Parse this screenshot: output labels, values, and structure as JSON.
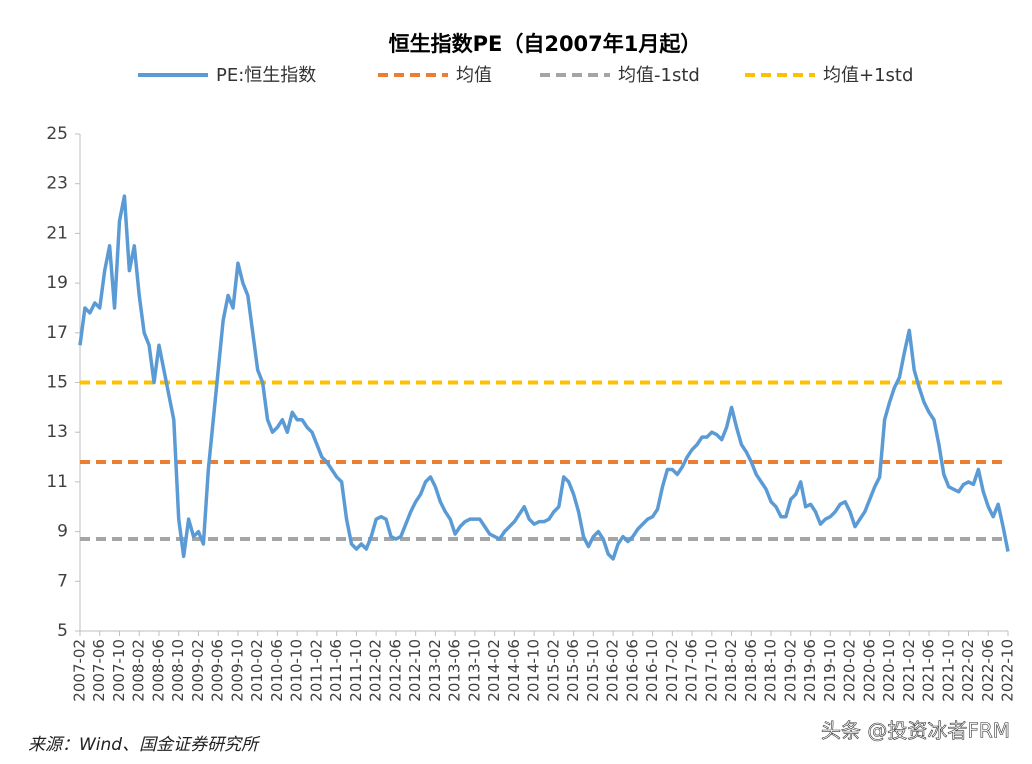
{
  "chart_data": {
    "type": "line",
    "title": "恒生指数PE（自2007年1月起）",
    "categories": [
      "2007-02",
      null,
      null,
      null,
      "2007-06",
      null,
      null,
      null,
      "2007-10",
      null,
      null,
      null,
      "2008-02",
      null,
      null,
      null,
      "2008-06",
      null,
      null,
      null,
      "2008-10",
      null,
      null,
      null,
      "2009-02",
      null,
      null,
      null,
      "2009-06",
      null,
      null,
      null,
      "2009-10",
      null,
      null,
      null,
      "2010-02",
      null,
      null,
      null,
      "2010-06",
      null,
      null,
      null,
      "2010-10",
      null,
      null,
      null,
      "2011-02",
      null,
      null,
      null,
      "2011-06",
      null,
      null,
      null,
      "2011-10",
      null,
      null,
      null,
      "2012-02",
      null,
      null,
      null,
      "2012-06",
      null,
      null,
      null,
      "2012-10",
      null,
      null,
      null,
      "2013-02",
      null,
      null,
      null,
      "2013-06",
      null,
      null,
      null,
      "2013-10",
      null,
      null,
      null,
      "2014-02",
      null,
      null,
      null,
      "2014-06",
      null,
      null,
      null,
      "2014-10",
      null,
      null,
      null,
      "2015-02",
      null,
      null,
      null,
      "2015-06",
      null,
      null,
      null,
      "2015-10",
      null,
      null,
      null,
      "2016-02",
      null,
      null,
      null,
      "2016-06",
      null,
      null,
      null,
      "2016-10",
      null,
      null,
      null,
      "2017-02",
      null,
      null,
      null,
      "2017-06",
      null,
      null,
      null,
      "2017-10",
      null,
      null,
      null,
      "2018-02",
      null,
      null,
      null,
      "2018-06",
      null,
      null,
      null,
      "2018-10",
      null,
      null,
      null,
      "2019-02",
      null,
      null,
      null,
      "2019-06",
      null,
      null,
      null,
      "2019-10",
      null,
      null,
      null,
      "2020-02",
      null,
      null,
      null,
      "2020-06",
      null,
      null,
      null,
      "2020-10",
      null,
      null,
      null,
      "2021-02",
      null,
      null,
      null,
      "2021-06",
      null,
      null,
      null,
      "2021-10",
      null,
      null,
      null,
      "2022-02",
      null,
      null,
      null,
      "2022-06",
      null,
      null,
      null,
      "2022-10"
    ],
    "series": [
      {
        "name": "PE:恒生指数",
        "color": "#5b9bd5",
        "values": [
          16.5,
          18,
          17.8,
          18.2,
          18,
          19.5,
          20.5,
          18,
          21.5,
          22.5,
          19.5,
          20.5,
          18.5,
          17,
          16.5,
          15,
          16.5,
          15.5,
          14.5,
          13.5,
          9.5,
          8,
          9.5,
          8.8,
          9,
          8.5,
          11.5,
          13.5,
          15.5,
          17.5,
          18.5,
          18,
          19.8,
          19,
          18.5,
          17,
          15.5,
          15,
          13.5,
          13,
          13.2,
          13.5,
          13,
          13.8,
          13.5,
          13.5,
          13.2,
          13,
          12.5,
          12,
          11.8,
          11.5,
          11.2,
          11,
          9.5,
          8.5,
          8.3,
          8.5,
          8.3,
          8.8,
          9.5,
          9.6,
          9.5,
          8.8,
          8.7,
          8.8,
          9.3,
          9.8,
          10.2,
          10.5,
          11,
          11.2,
          10.8,
          10.2,
          9.8,
          9.5,
          8.9,
          9.2,
          9.4,
          9.5,
          9.5,
          9.5,
          9.2,
          8.9,
          8.8,
          8.7,
          9,
          9.2,
          9.4,
          9.7,
          10,
          9.5,
          9.3,
          9.4,
          9.4,
          9.5,
          9.8,
          10,
          11.2,
          11,
          10.5,
          9.8,
          8.8,
          8.4,
          8.8,
          9,
          8.7,
          8.1,
          7.9,
          8.5,
          8.8,
          8.6,
          8.8,
          9.1,
          9.3,
          9.5,
          9.6,
          9.9,
          10.8,
          11.5,
          11.5,
          11.3,
          11.6,
          12,
          12.3,
          12.5,
          12.8,
          12.8,
          13,
          12.9,
          12.7,
          13.2,
          14,
          13.2,
          12.5,
          12.2,
          11.8,
          11.3,
          11,
          10.7,
          10.2,
          10,
          9.6,
          9.6,
          10.3,
          10.5,
          11,
          10,
          10.1,
          9.8,
          9.3,
          9.5,
          9.6,
          9.8,
          10.1,
          10.2,
          9.8,
          9.2,
          9.5,
          9.8,
          10.3,
          10.8,
          11.2,
          13.5,
          14.2,
          14.8,
          15.2,
          16.2,
          17.1,
          15.5,
          14.8,
          14.2,
          13.8,
          13.5,
          12.5,
          11.3,
          10.8,
          10.7,
          10.6,
          10.9,
          11,
          10.9,
          11.5,
          10.6,
          10,
          9.6,
          10.1,
          9.2,
          8.2
        ]
      }
    ],
    "reference_lines": [
      {
        "name": "均值",
        "value": 11.8,
        "color": "#ed7d31"
      },
      {
        "name": "均值-1std",
        "value": 8.7,
        "color": "#a5a5a5"
      },
      {
        "name": "均值+1std",
        "value": 15.0,
        "color": "#ffc000"
      }
    ],
    "ylim": [
      5,
      25
    ],
    "yticks": [
      5,
      7,
      9,
      11,
      13,
      15,
      17,
      19,
      21,
      23,
      25
    ],
    "grid": false,
    "source": "来源：Wind、国金证券研究所",
    "watermark": "头条 @投资冰者FRM"
  }
}
